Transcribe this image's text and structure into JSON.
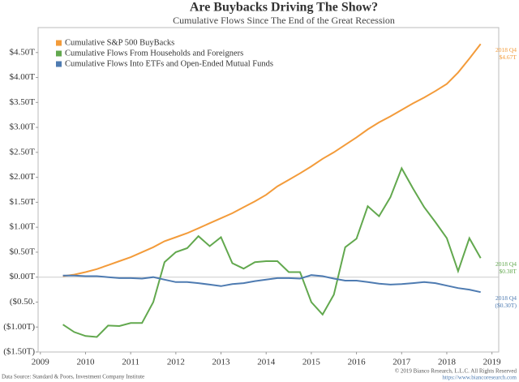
{
  "chart_data": {
    "type": "line",
    "title": "Are Buybacks Driving The Show?",
    "subtitle": "Cumulative Flows Since The End of the Great Recession",
    "source": "Data Source: Standard & Poors, Investment Company Institute",
    "copyright": "© 2019 Bianco Research, L.L.C. All Rights Reserved",
    "url": "https://www.biancoresearch.com",
    "legend": "upper left",
    "xlim": [
      2008.95,
      2019.15
    ],
    "xticks": [
      2009,
      2010,
      2011,
      2012,
      2013,
      2014,
      2015,
      2016,
      2017,
      2018,
      2019
    ],
    "ylim": [
      -1.5,
      5.0
    ],
    "yticks": [
      {
        "value": -1.5,
        "label": "($1.50T)"
      },
      {
        "value": -1.0,
        "label": "($1.00T)"
      },
      {
        "value": -0.5,
        "label": "($0.50."
      },
      {
        "value": 0,
        "label": "$0.00T"
      },
      {
        "value": 0.5,
        "label": "$0.50T"
      },
      {
        "value": 1.0,
        "label": "$1.00T"
      },
      {
        "value": 1.5,
        "label": "$1.50T"
      },
      {
        "value": 2.0,
        "label": "$2.00T"
      },
      {
        "value": 2.5,
        "label": "$2.50T"
      },
      {
        "value": 3.0,
        "label": "$3.00T"
      },
      {
        "value": 3.5,
        "label": "$3.50T"
      },
      {
        "value": 4.0,
        "label": "$4.00T"
      },
      {
        "value": 4.5,
        "label": "$4.50T"
      }
    ],
    "x": [
      2009.5,
      2009.75,
      2010,
      2010.25,
      2010.5,
      2010.75,
      2011,
      2011.25,
      2011.5,
      2011.75,
      2012,
      2012.25,
      2012.5,
      2012.75,
      2013,
      2013.25,
      2013.5,
      2013.75,
      2014,
      2014.25,
      2014.5,
      2014.75,
      2015,
      2015.25,
      2015.5,
      2015.75,
      2016,
      2016.25,
      2016.5,
      2016.75,
      2017,
      2017.25,
      2017.5,
      2017.75,
      2018,
      2018.25,
      2018.5,
      2018.75
    ],
    "series": [
      {
        "name": "Cumulative S&P 500 BuyBacks",
        "color": "#f39b3a",
        "annotation": [
          "2018 Q4",
          "$4.67T"
        ],
        "values": [
          0.02,
          0.05,
          0.1,
          0.16,
          0.24,
          0.32,
          0.4,
          0.5,
          0.6,
          0.72,
          0.8,
          0.88,
          0.98,
          1.08,
          1.18,
          1.28,
          1.4,
          1.52,
          1.65,
          1.82,
          1.95,
          2.08,
          2.22,
          2.37,
          2.5,
          2.65,
          2.8,
          2.96,
          3.1,
          3.22,
          3.35,
          3.48,
          3.6,
          3.73,
          3.87,
          4.1,
          4.38,
          4.67
        ]
      },
      {
        "name": "Cumulative Flows From Households and Foreigners",
        "color": "#62a84e",
        "annotation": [
          "2018 Q4",
          "$0.38T"
        ],
        "values": [
          -0.95,
          -1.1,
          -1.18,
          -1.2,
          -0.97,
          -0.98,
          -0.92,
          -0.92,
          -0.5,
          0.3,
          0.5,
          0.58,
          0.82,
          0.62,
          0.8,
          0.28,
          0.17,
          0.3,
          0.32,
          0.32,
          0.1,
          0.1,
          -0.5,
          -0.75,
          -0.35,
          0.6,
          0.77,
          1.42,
          1.22,
          1.6,
          2.18,
          1.78,
          1.4,
          1.1,
          0.78,
          0.12,
          0.78,
          0.38
        ]
      },
      {
        "name": "Cumulative Flows Into ETFs and Open-Ended Mutual Funds",
        "color": "#4e7bb1",
        "annotation": [
          "2018 Q4",
          "($0.30T)"
        ],
        "values": [
          0.03,
          0.03,
          0.02,
          0.02,
          0.0,
          -0.02,
          -0.02,
          -0.03,
          0.0,
          -0.05,
          -0.1,
          -0.1,
          -0.12,
          -0.15,
          -0.18,
          -0.14,
          -0.12,
          -0.08,
          -0.05,
          -0.02,
          -0.02,
          -0.03,
          0.04,
          0.02,
          -0.03,
          -0.07,
          -0.07,
          -0.1,
          -0.13,
          -0.15,
          -0.14,
          -0.12,
          -0.1,
          -0.12,
          -0.17,
          -0.22,
          -0.25,
          -0.3
        ]
      }
    ]
  }
}
